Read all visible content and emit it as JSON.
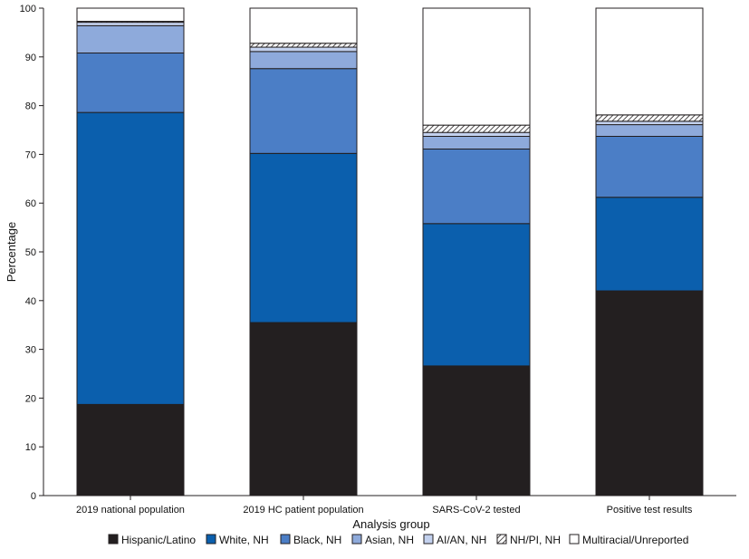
{
  "chart_data": {
    "type": "bar",
    "stacked": true,
    "xlabel": "Analysis group",
    "ylabel": "Percentage",
    "ylim": [
      0,
      100
    ],
    "yticks": [
      0,
      10,
      20,
      30,
      40,
      50,
      60,
      70,
      80,
      90,
      100
    ],
    "grid": false,
    "legend_position": "bottom",
    "categories": [
      "2019 national population",
      "2019 HC patient population",
      "SARS-CoV-2 tested",
      "Positive test results"
    ],
    "series": [
      {
        "name": "Hispanic/Latino",
        "values": [
          18.7,
          35.5,
          26.6,
          42.0
        ],
        "color": "#231f20",
        "pattern": "solid"
      },
      {
        "name": "White, NH",
        "values": [
          59.9,
          34.7,
          29.2,
          19.2
        ],
        "color": "#0b5fad",
        "pattern": "solid"
      },
      {
        "name": "Black, NH",
        "values": [
          12.2,
          17.4,
          15.3,
          12.5
        ],
        "color": "#4b7ec6",
        "pattern": "solid"
      },
      {
        "name": "Asian, NH",
        "values": [
          5.6,
          3.5,
          2.6,
          2.4
        ],
        "color": "#8eaadb",
        "pattern": "solid"
      },
      {
        "name": "AI/AN, NH",
        "values": [
          0.7,
          0.9,
          0.8,
          0.7
        ],
        "color": "#c3d1ee",
        "pattern": "solid"
      },
      {
        "name": "NH/PI, NH",
        "values": [
          0.2,
          0.8,
          1.5,
          1.3
        ],
        "color": "#ffffff",
        "pattern": "hatch"
      },
      {
        "name": "Multiracial/Unreported",
        "values": [
          2.7,
          7.2,
          24.0,
          21.9
        ],
        "color": "#ffffff",
        "pattern": "solid"
      }
    ]
  }
}
